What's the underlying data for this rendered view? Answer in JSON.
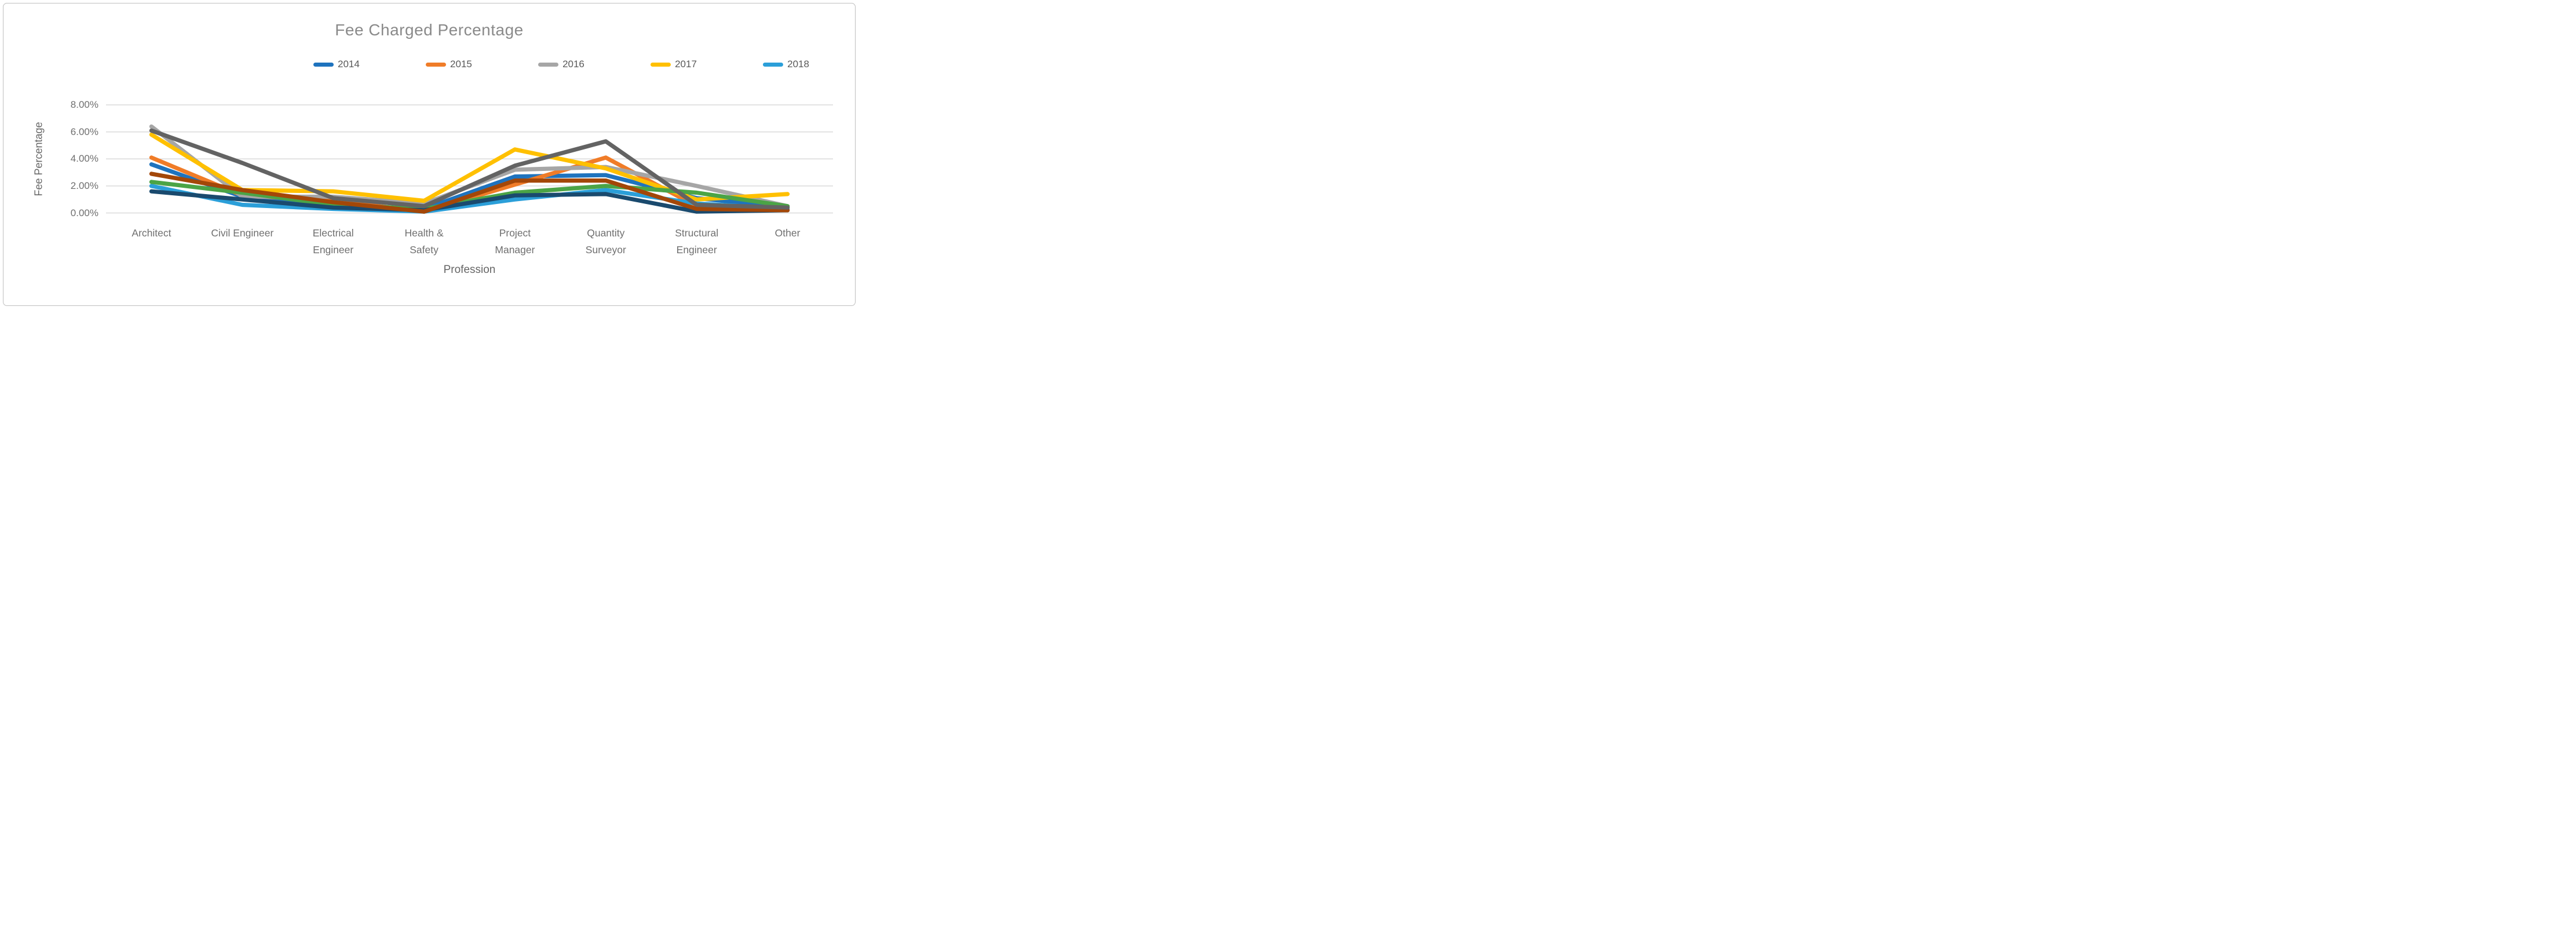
{
  "chart_data": {
    "type": "line",
    "title": "Fee Charged Percentage",
    "xlabel": "Profession",
    "ylabel": "Fee Percentage",
    "ylim": [
      0,
      8
    ],
    "grid": "horizontal-gridlines",
    "legend_position": "top-center",
    "gridline_color": "#dadada",
    "text_colors": {
      "title": "#8a8a8a",
      "ticks": "#6f6f6f",
      "axis_titles": "#666666",
      "legend": "#595959"
    },
    "y_ticks": [
      {
        "value": 0,
        "label": "0.00%"
      },
      {
        "value": 2,
        "label": "2.00%"
      },
      {
        "value": 4,
        "label": "4.00%"
      },
      {
        "value": 6,
        "label": "6.00%"
      },
      {
        "value": 8,
        "label": "8.00%"
      }
    ],
    "categories": [
      "Architect",
      "Civil Engineer",
      "Electrical Engineer",
      "Health & Safety",
      "Project Manager",
      "Quantity Surveyor",
      "Structural Engineer",
      "Other"
    ],
    "category_label_lines": [
      [
        "Architect"
      ],
      [
        "Civil Engineer"
      ],
      [
        "Electrical",
        "Engineer"
      ],
      [
        "Health &",
        "Safety"
      ],
      [
        "Project",
        "Manager"
      ],
      [
        "Quantity",
        "Surveyor"
      ],
      [
        "Structural",
        "Engineer"
      ],
      [
        "Other"
      ]
    ],
    "series": [
      {
        "name": "2014",
        "color": "#1E73BE",
        "in_legend": true,
        "values": [
          3.6,
          1.2,
          0.5,
          0.3,
          2.7,
          2.8,
          1.1,
          0.4
        ]
      },
      {
        "name": "2015",
        "color": "#F07C28",
        "in_legend": true,
        "values": [
          4.1,
          1.3,
          0.9,
          0.1,
          2.1,
          4.1,
          0.5,
          0.2
        ]
      },
      {
        "name": "2016",
        "color": "#A6A6A6",
        "in_legend": true,
        "values": [
          6.4,
          1.2,
          1.2,
          0.7,
          3.2,
          3.4,
          2.0,
          0.5
        ]
      },
      {
        "name": "2017",
        "color": "#FFC000",
        "in_legend": true,
        "values": [
          5.8,
          1.7,
          1.6,
          0.9,
          4.7,
          3.3,
          1.0,
          1.4
        ]
      },
      {
        "name": "2018",
        "color": "#2B9FD9",
        "in_legend": true,
        "values": [
          2.0,
          0.6,
          0.3,
          0.1,
          1.0,
          1.7,
          0.7,
          0.3
        ]
      },
      {
        "name": "unlabeled (green)",
        "color": "#4BA446",
        "in_legend": false,
        "values": [
          2.3,
          1.5,
          0.6,
          0.3,
          1.5,
          2.0,
          1.5,
          0.5
        ]
      },
      {
        "name": "unlabeled (dark navy)",
        "color": "#1A4A6E",
        "in_legend": false,
        "values": [
          1.6,
          1.0,
          0.4,
          0.2,
          1.3,
          1.4,
          0.1,
          0.2
        ]
      },
      {
        "name": "unlabeled (rust)",
        "color": "#A34708",
        "in_legend": false,
        "values": [
          2.9,
          1.7,
          0.8,
          0.1,
          2.4,
          2.4,
          0.3,
          0.2
        ]
      },
      {
        "name": "unlabeled (dark gray)",
        "color": "#636363",
        "in_legend": false,
        "values": [
          6.1,
          3.7,
          1.1,
          0.5,
          3.5,
          5.3,
          0.6,
          0.4
        ]
      }
    ]
  }
}
